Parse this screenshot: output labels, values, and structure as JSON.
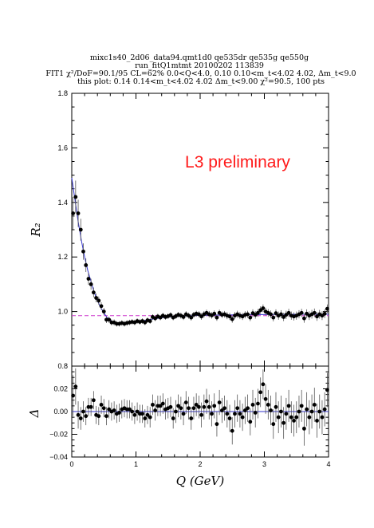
{
  "header": {
    "line1": "mixc1s40_2d06_data94.qmt1d0 qe535dr qe535g qe550g",
    "line2": "run_fitQ1mtmt 20100202 113839",
    "line3": "FIT1 χ²/DoF=90.1/95 CL=62% 0.0<Q<4.0, 0.10 0.10<m_t<4.02 4.02, Δm_t<9.0",
    "line4": "this plot: 0.14 0.14<m_t<4.02 4.02 Δm_t<9.00 χ²=90.5, 100 pts"
  },
  "annotation": "L3 preliminary",
  "chart_data": [
    {
      "type": "scatter",
      "panel": "top",
      "ylabel": "R₂",
      "xlim": [
        0,
        4
      ],
      "ylim": [
        0.8,
        1.8
      ],
      "yticks": [
        "0.8",
        "1.0",
        "1.2",
        "1.4",
        "1.6",
        "1.8"
      ],
      "reference_line": {
        "y": 0.985,
        "style": "dashed",
        "color": "#cc33cc"
      },
      "series": [
        {
          "kind": "data-points",
          "x": [
            0.02,
            0.06,
            0.1,
            0.14,
            0.18,
            0.22,
            0.26,
            0.3,
            0.34,
            0.38,
            0.42,
            0.46,
            0.5,
            0.54,
            0.58,
            0.62,
            0.66,
            0.7,
            0.74,
            0.78,
            0.82,
            0.86,
            0.9,
            0.94,
            0.98,
            1.02,
            1.06,
            1.1,
            1.14,
            1.18,
            1.22,
            1.26,
            1.3,
            1.34,
            1.38,
            1.42,
            1.46,
            1.5,
            1.54,
            1.58,
            1.62,
            1.66,
            1.7,
            1.74,
            1.78,
            1.82,
            1.86,
            1.9,
            1.94,
            1.98,
            2.02,
            2.06,
            2.1,
            2.14,
            2.18,
            2.22,
            2.26,
            2.3,
            2.34,
            2.38,
            2.42,
            2.46,
            2.5,
            2.54,
            2.58,
            2.62,
            2.66,
            2.7,
            2.74,
            2.78,
            2.82,
            2.86,
            2.9,
            2.94,
            2.98,
            3.02,
            3.06,
            3.1,
            3.14,
            3.18,
            3.22,
            3.26,
            3.3,
            3.34,
            3.38,
            3.42,
            3.46,
            3.5,
            3.54,
            3.58,
            3.62,
            3.66,
            3.7,
            3.74,
            3.78,
            3.82,
            3.86,
            3.9,
            3.94,
            3.98
          ],
          "y": [
            1.36,
            1.42,
            1.36,
            1.3,
            1.22,
            1.17,
            1.12,
            1.1,
            1.07,
            1.05,
            1.04,
            1.02,
            1.0,
            0.97,
            0.97,
            0.96,
            0.96,
            0.955,
            0.955,
            0.958,
            0.955,
            0.958,
            0.96,
            0.962,
            0.96,
            0.965,
            0.962,
            0.965,
            0.96,
            0.968,
            0.965,
            0.98,
            0.975,
            0.982,
            0.978,
            0.985,
            0.98,
            0.983,
            0.987,
            0.978,
            0.983,
            0.988,
            0.985,
            0.98,
            0.99,
            0.985,
            0.978,
            0.988,
            0.992,
            0.99,
            0.982,
            0.99,
            0.995,
            0.99,
            0.986,
            0.992,
            0.978,
            0.995,
            0.988,
            0.99,
            0.985,
            0.982,
            0.972,
            0.985,
            0.99,
            0.985,
            0.982,
            0.988,
            0.99,
            0.978,
            0.994,
            0.988,
            0.995,
            1.005,
            1.012,
            1.0,
            0.995,
            0.99,
            0.978,
            0.994,
            0.985,
            0.99,
            0.98,
            0.988,
            0.995,
            0.985,
            0.982,
            0.985,
            0.99,
            0.995,
            0.975,
            0.992,
            0.985,
            0.99,
            0.995,
            0.982,
            0.99,
            0.985,
            0.992,
            1.01
          ],
          "yerr": [
            0.06,
            0.06,
            0.05,
            0.04,
            0.03,
            0.025,
            0.022,
            0.02,
            0.018,
            0.016,
            0.015,
            0.014,
            0.013,
            0.012,
            0.011,
            0.011,
            0.011,
            0.01,
            0.01,
            0.01,
            0.01,
            0.01,
            0.01,
            0.01,
            0.01,
            0.01,
            0.01,
            0.01,
            0.01,
            0.01,
            0.01,
            0.01,
            0.01,
            0.01,
            0.01,
            0.01,
            0.01,
            0.01,
            0.01,
            0.01,
            0.01,
            0.01,
            0.011,
            0.011,
            0.011,
            0.011,
            0.011,
            0.011,
            0.011,
            0.011,
            0.012,
            0.012,
            0.012,
            0.012,
            0.012,
            0.012,
            0.012,
            0.012,
            0.012,
            0.012,
            0.013,
            0.013,
            0.013,
            0.013,
            0.013,
            0.013,
            0.013,
            0.013,
            0.013,
            0.013,
            0.014,
            0.014,
            0.014,
            0.014,
            0.014,
            0.014,
            0.014,
            0.014,
            0.014,
            0.014,
            0.015,
            0.015,
            0.015,
            0.015,
            0.015,
            0.015,
            0.015,
            0.015,
            0.015,
            0.015,
            0.016,
            0.016,
            0.016,
            0.016,
            0.016,
            0.016,
            0.016,
            0.016,
            0.016,
            0.016
          ]
        },
        {
          "kind": "fit-curve",
          "color": "#3333cc",
          "x": [
            0.0,
            0.05,
            0.1,
            0.15,
            0.2,
            0.25,
            0.3,
            0.35,
            0.4,
            0.45,
            0.5,
            0.55,
            0.6,
            0.65,
            0.7,
            0.8,
            0.9,
            1.0,
            1.1,
            1.2,
            1.3,
            1.4,
            1.5,
            1.75,
            2.0,
            2.5,
            3.0,
            3.5,
            4.0
          ],
          "y": [
            1.49,
            1.41,
            1.33,
            1.26,
            1.2,
            1.15,
            1.11,
            1.07,
            1.04,
            1.015,
            0.995,
            0.978,
            0.968,
            0.961,
            0.958,
            0.956,
            0.958,
            0.962,
            0.966,
            0.97,
            0.974,
            0.977,
            0.98,
            0.984,
            0.986,
            0.988,
            0.989,
            0.99,
            0.99
          ]
        }
      ]
    },
    {
      "type": "scatter",
      "panel": "bottom",
      "ylabel": "Δ",
      "xlabel": "Q (GeV)",
      "xlim": [
        0,
        4
      ],
      "ylim": [
        -0.04,
        0.04
      ],
      "xticks": [
        "0",
        "1",
        "2",
        "3",
        "4"
      ],
      "yticks": [
        "−0.04",
        "−0.02",
        "0.00",
        "0.02"
      ],
      "reference_line": {
        "y": 0.0,
        "style": "solid",
        "color": "#3333cc"
      },
      "series": [
        {
          "kind": "residuals",
          "x": [
            0.02,
            0.06,
            0.1,
            0.14,
            0.18,
            0.22,
            0.26,
            0.3,
            0.34,
            0.38,
            0.42,
            0.46,
            0.5,
            0.54,
            0.58,
            0.62,
            0.66,
            0.7,
            0.74,
            0.78,
            0.82,
            0.86,
            0.9,
            0.94,
            0.98,
            1.02,
            1.06,
            1.1,
            1.14,
            1.18,
            1.22,
            1.26,
            1.3,
            1.34,
            1.38,
            1.42,
            1.46,
            1.5,
            1.54,
            1.58,
            1.62,
            1.66,
            1.7,
            1.74,
            1.78,
            1.82,
            1.86,
            1.9,
            1.94,
            1.98,
            2.02,
            2.06,
            2.1,
            2.14,
            2.18,
            2.22,
            2.26,
            2.3,
            2.34,
            2.38,
            2.42,
            2.46,
            2.5,
            2.54,
            2.58,
            2.62,
            2.66,
            2.7,
            2.74,
            2.78,
            2.82,
            2.86,
            2.9,
            2.94,
            2.98,
            3.02,
            3.06,
            3.1,
            3.14,
            3.18,
            3.22,
            3.26,
            3.3,
            3.34,
            3.38,
            3.42,
            3.46,
            3.5,
            3.54,
            3.58,
            3.62,
            3.66,
            3.7,
            3.74,
            3.78,
            3.82,
            3.86,
            3.9,
            3.94,
            3.98
          ],
          "y": [
            0.014,
            0.022,
            -0.003,
            -0.006,
            0.0,
            -0.004,
            0.004,
            0.004,
            0.01,
            -0.003,
            -0.004,
            0.006,
            0.003,
            -0.004,
            0.002,
            0.0,
            0.001,
            -0.002,
            -0.001,
            0.002,
            0.003,
            0.002,
            0.002,
            0.0,
            -0.003,
            0.0,
            -0.002,
            -0.002,
            -0.006,
            -0.003,
            -0.005,
            0.006,
            0.001,
            0.005,
            0.005,
            0.007,
            0.002,
            0.003,
            0.004,
            -0.006,
            0.0,
            0.005,
            0.003,
            -0.002,
            0.008,
            0.003,
            -0.006,
            0.003,
            0.006,
            0.004,
            -0.003,
            0.004,
            0.009,
            0.004,
            -0.002,
            0.005,
            -0.011,
            0.008,
            0.001,
            0.003,
            -0.002,
            -0.006,
            -0.017,
            -0.002,
            0.003,
            -0.002,
            -0.005,
            0.001,
            0.003,
            -0.009,
            0.006,
            -0.001,
            0.007,
            0.017,
            0.024,
            0.011,
            0.006,
            0.001,
            -0.011,
            0.004,
            -0.005,
            0.0,
            -0.01,
            -0.002,
            0.005,
            -0.005,
            -0.008,
            -0.005,
            0.0,
            0.005,
            -0.015,
            0.002,
            -0.005,
            0.0,
            0.006,
            -0.008,
            0.0,
            -0.005,
            0.002,
            0.019
          ],
          "yerr": [
            0.018,
            0.016,
            0.012,
            0.01,
            0.009,
            0.008,
            0.008,
            0.008,
            0.008,
            0.008,
            0.008,
            0.008,
            0.008,
            0.008,
            0.008,
            0.008,
            0.008,
            0.008,
            0.008,
            0.008,
            0.008,
            0.008,
            0.008,
            0.008,
            0.008,
            0.008,
            0.008,
            0.008,
            0.008,
            0.008,
            0.009,
            0.009,
            0.009,
            0.009,
            0.009,
            0.009,
            0.009,
            0.009,
            0.009,
            0.009,
            0.01,
            0.01,
            0.01,
            0.01,
            0.01,
            0.01,
            0.01,
            0.01,
            0.01,
            0.01,
            0.011,
            0.011,
            0.011,
            0.011,
            0.011,
            0.011,
            0.011,
            0.011,
            0.011,
            0.011,
            0.012,
            0.012,
            0.012,
            0.012,
            0.012,
            0.012,
            0.012,
            0.012,
            0.012,
            0.012,
            0.013,
            0.013,
            0.013,
            0.013,
            0.013,
            0.013,
            0.013,
            0.013,
            0.013,
            0.013,
            0.014,
            0.014,
            0.014,
            0.014,
            0.014,
            0.014,
            0.014,
            0.014,
            0.014,
            0.014,
            0.015,
            0.015,
            0.015,
            0.015,
            0.015,
            0.015,
            0.015,
            0.015,
            0.015,
            0.015
          ]
        }
      ]
    }
  ]
}
